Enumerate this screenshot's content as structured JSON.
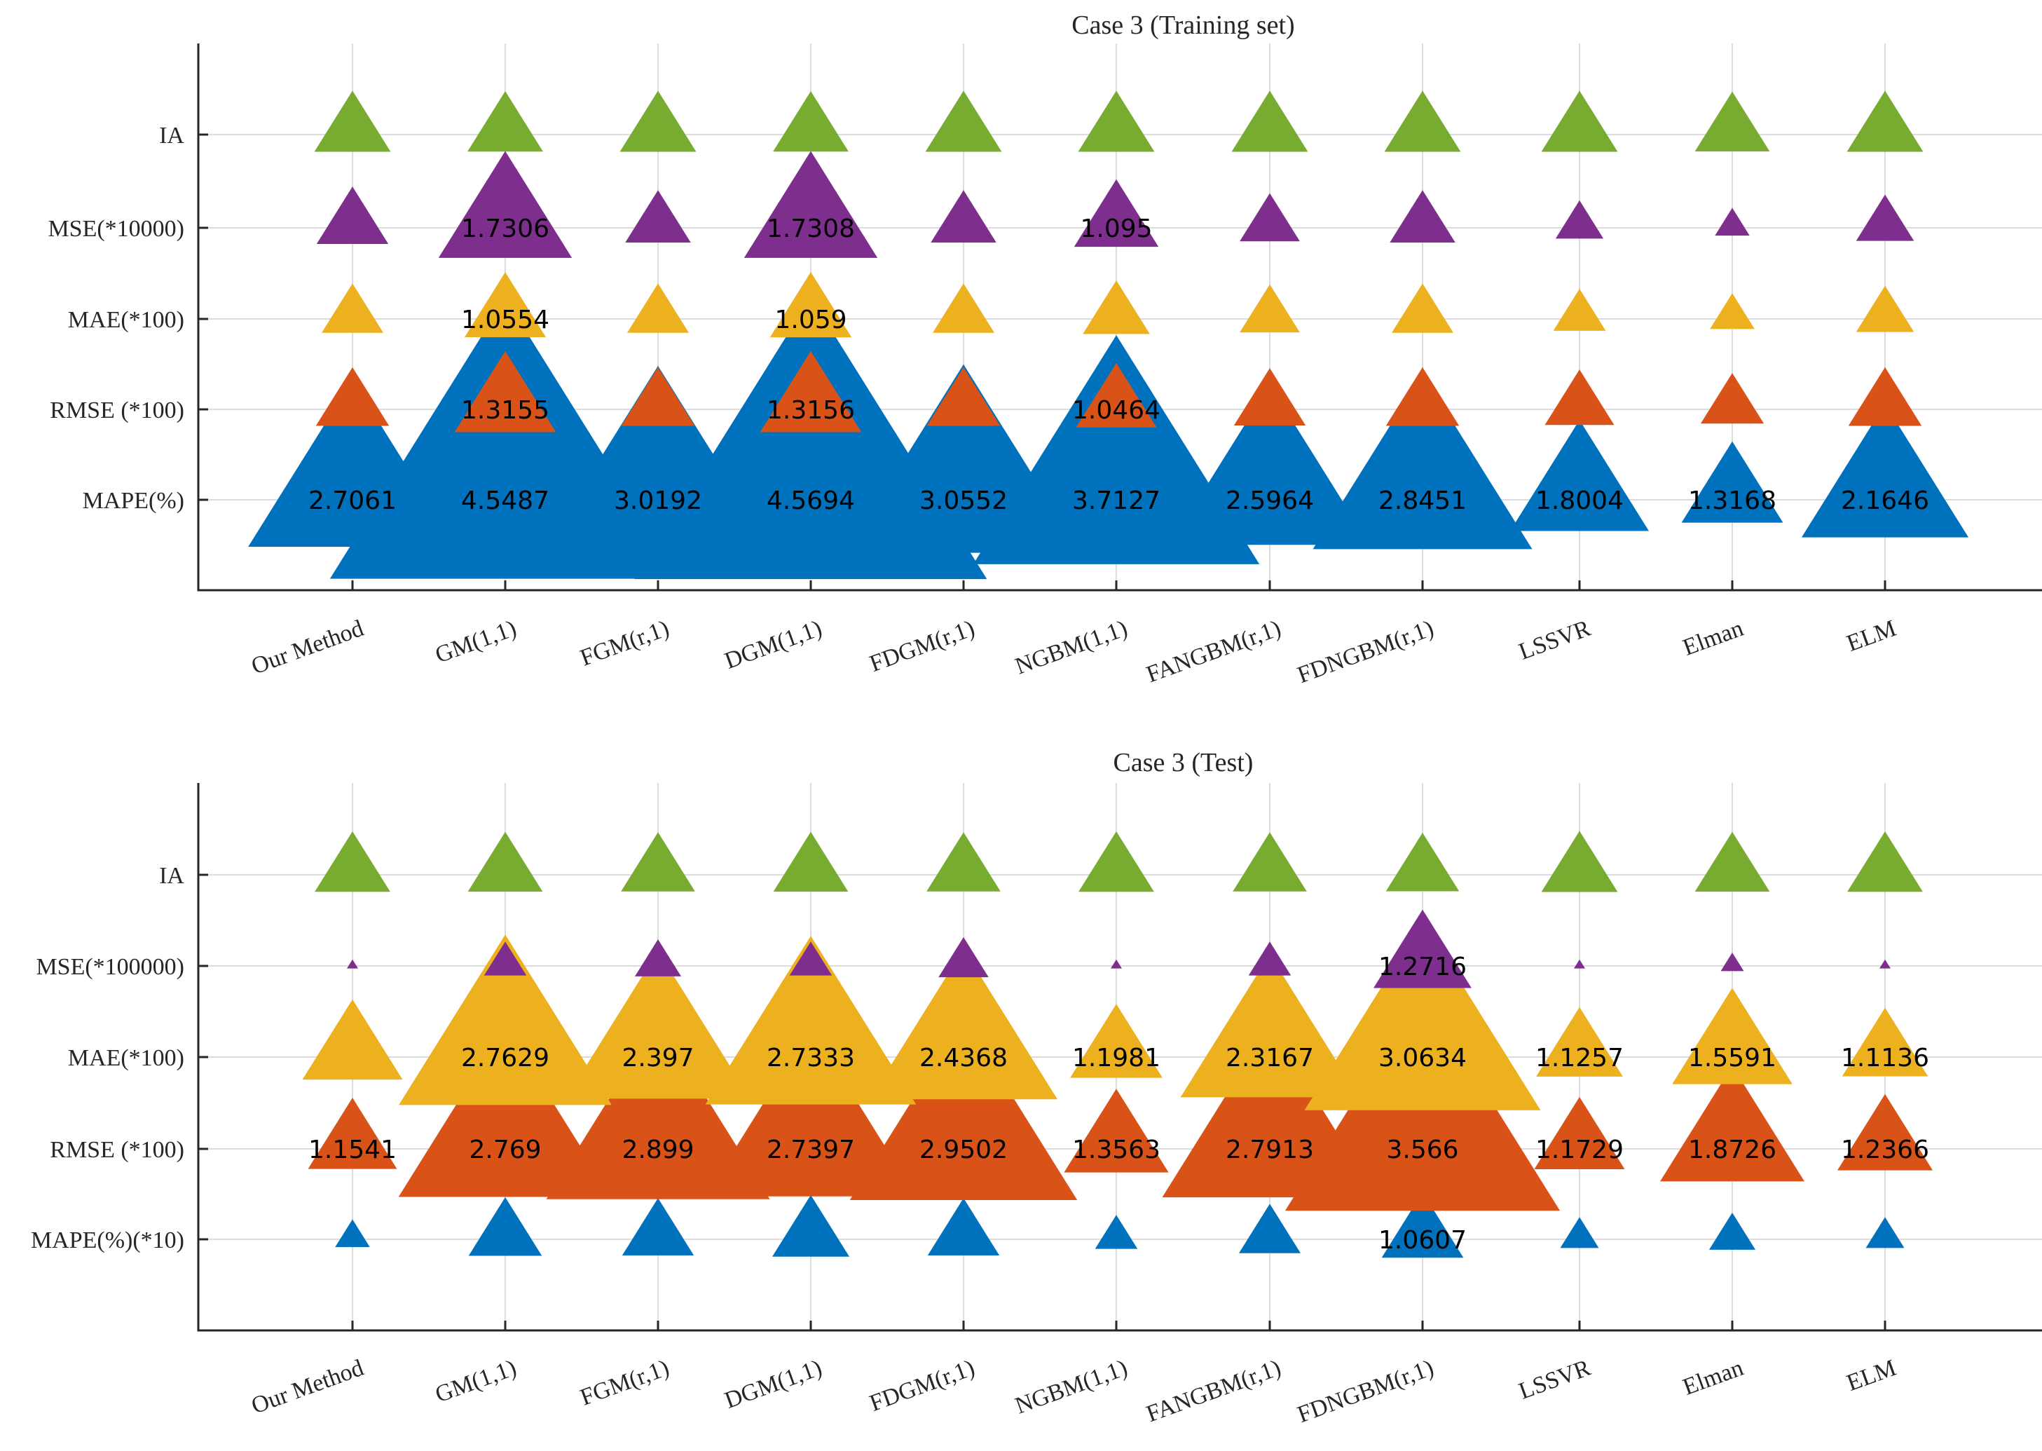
{
  "chart_data": [
    {
      "type": "scatter",
      "title": "Case 3 (Training set)",
      "categories": [
        "Our Method",
        "GM(1,1)",
        "FGM(r,1)",
        "DGM(1,1)",
        "FDGM(r,1)",
        "NGBM(1,1)",
        "FANGBM(r,1)",
        "FDNGBM(r,1)",
        "LSSVR",
        "Elman",
        "ELM"
      ],
      "rows": [
        "MAPE(%)",
        "RMSE (*100)",
        "MAE(*100)",
        "MSE(*10000)",
        "IA"
      ],
      "grid": true,
      "marker": "triangle",
      "series": [
        {
          "name": "MAPE(%)",
          "color": "#0072BD",
          "values": [
            2.7061,
            4.5487,
            3.0192,
            4.5694,
            3.0552,
            3.7127,
            2.5964,
            2.8451,
            1.8004,
            1.3168,
            2.1646
          ],
          "labels": [
            "2.7061",
            "4.5487",
            "3.0192",
            "4.5694",
            "3.0552",
            "3.7127",
            "2.5964",
            "2.8451",
            "1.8004",
            "1.3168",
            "2.1646"
          ]
        },
        {
          "name": "RMSE (*100)",
          "color": "#D95319",
          "values": [
            0.95,
            1.3155,
            0.95,
            1.3156,
            0.95,
            1.0464,
            0.93,
            0.95,
            0.9,
            0.82,
            0.95
          ],
          "labels": [
            "",
            "1.3155",
            "",
            "1.3156",
            "",
            "1.0464",
            "",
            "",
            "",
            "",
            ""
          ]
        },
        {
          "name": "MAE(*100)",
          "color": "#EDB120",
          "values": [
            0.8,
            1.0554,
            0.8,
            1.059,
            0.8,
            0.87,
            0.78,
            0.8,
            0.68,
            0.58,
            0.75
          ],
          "labels": [
            "",
            "1.0554",
            "",
            "1.059",
            "",
            "",
            "",
            "",
            "",
            "",
            ""
          ]
        },
        {
          "name": "MSE(*10000)",
          "color": "#7E2F8E",
          "values": [
            0.93,
            1.7306,
            0.85,
            1.7308,
            0.85,
            1.095,
            0.78,
            0.85,
            0.62,
            0.45,
            0.75
          ],
          "labels": [
            "",
            "1.7306",
            "",
            "1.7308",
            "",
            "1.095",
            "",
            "",
            "",
            "",
            ""
          ]
        },
        {
          "name": "IA",
          "color": "#77AC30",
          "values": [
            0.99,
            0.98,
            0.99,
            0.98,
            0.99,
            0.99,
            0.99,
            0.99,
            0.99,
            0.97,
            0.99
          ],
          "labels": [
            "",
            "",
            "",
            "",
            "",
            "",
            "",
            "",
            "",
            "",
            ""
          ]
        }
      ]
    },
    {
      "type": "scatter",
      "title": "Case 3 (Test)",
      "categories": [
        "Our Method",
        "GM(1,1)",
        "FGM(r,1)",
        "DGM(1,1)",
        "FDGM(r,1)",
        "NGBM(1,1)",
        "FANGBM(r,1)",
        "FDNGBM(r,1)",
        "LSSVR",
        "Elman",
        "ELM"
      ],
      "rows": [
        "MAPE(%)(*10)",
        "RMSE (*100)",
        "MAE(*100)",
        "MSE(*100000)",
        "IA"
      ],
      "grid": true,
      "marker": "triangle",
      "series": [
        {
          "name": "MAPE(%)(*10)",
          "color": "#0072BD",
          "values": [
            0.45,
            0.95,
            0.93,
            1.0,
            0.93,
            0.55,
            0.8,
            1.0607,
            0.5,
            0.6,
            0.5
          ],
          "labels": [
            "",
            "",
            "",
            "",
            "",
            "",
            "",
            "1.0607",
            "",
            "",
            ""
          ]
        },
        {
          "name": "RMSE (*100)",
          "color": "#D95319",
          "values": [
            1.1541,
            2.769,
            2.899,
            2.7397,
            2.9502,
            1.3563,
            2.7913,
            3.566,
            1.1729,
            1.8726,
            1.2366
          ],
          "labels": [
            "1.1541",
            "2.769",
            "2.899",
            "2.7397",
            "2.9502",
            "1.3563",
            "2.7913",
            "3.566",
            "1.1729",
            "1.8726",
            "1.2366"
          ]
        },
        {
          "name": "MAE(*100)",
          "color": "#EDB120",
          "values": [
            1.3,
            2.7629,
            2.397,
            2.7333,
            2.4368,
            1.1981,
            2.3167,
            3.0634,
            1.1257,
            1.5591,
            1.1136
          ],
          "labels": [
            "",
            "2.7629",
            "2.397",
            "2.7333",
            "2.4368",
            "1.1981",
            "2.3167",
            "3.0634",
            "1.1257",
            "1.5591",
            "1.1136"
          ]
        },
        {
          "name": "MSE(*100000)",
          "color": "#7E2F8E",
          "values": [
            0.12,
            0.55,
            0.6,
            0.55,
            0.65,
            0.13,
            0.55,
            1.2716,
            0.1,
            0.3,
            0.1
          ],
          "labels": [
            "",
            "",
            "",
            "",
            "",
            "",
            "",
            "1.2716",
            "",
            "",
            ""
          ]
        },
        {
          "name": "IA",
          "color": "#77AC30",
          "values": [
            0.98,
            0.97,
            0.96,
            0.97,
            0.96,
            0.98,
            0.96,
            0.95,
            0.99,
            0.97,
            0.98
          ],
          "labels": [
            "",
            "",
            "",
            "",
            "",
            "",
            "",
            "",
            "",
            "",
            ""
          ]
        }
      ]
    }
  ]
}
